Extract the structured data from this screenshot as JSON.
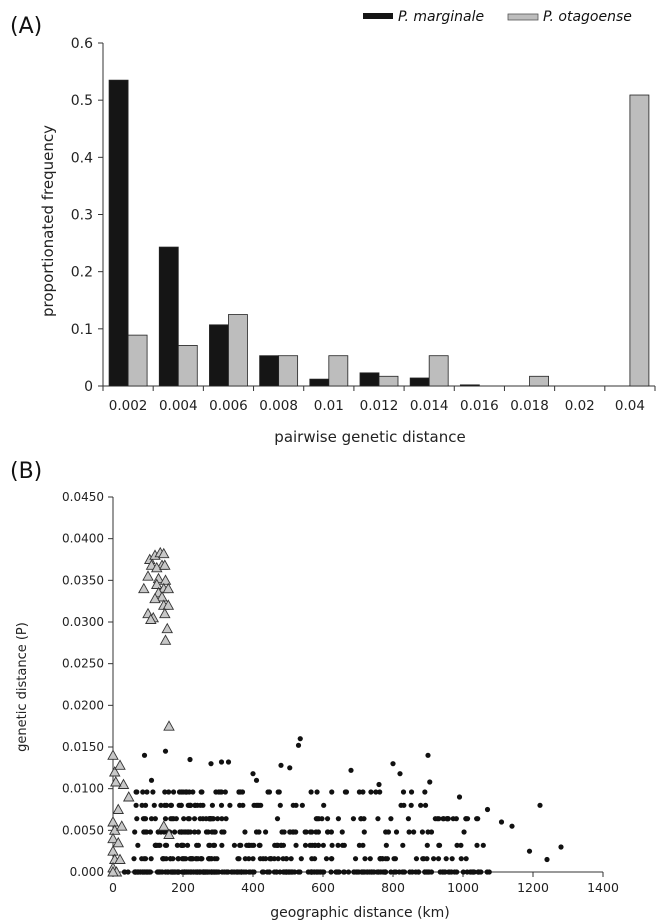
{
  "chart_data": [
    {
      "panel": "(A)",
      "type": "bar",
      "xlabel": "pairwise genetic distance",
      "ylabel": "proportionated frequency",
      "ylim": [
        0,
        0.6
      ],
      "yticks": [
        "0",
        "0.1",
        "0.2",
        "0.3",
        "0.4",
        "0.5",
        "0.6"
      ],
      "categories": [
        "0.002",
        "0.004",
        "0.006",
        "0.008",
        "0.01",
        "0.012",
        "0.014",
        "0.016",
        "0.018",
        "0.02",
        "0.04"
      ],
      "series": [
        {
          "name": "P. marginale",
          "color": "#151515",
          "values": [
            0.535,
            0.243,
            0.107,
            0.053,
            0.012,
            0.023,
            0.014,
            0.002,
            0,
            0,
            0
          ]
        },
        {
          "name": "P. otagoense",
          "color": "#bdbdbd",
          "values": [
            0.089,
            0.071,
            0.125,
            0.053,
            0.053,
            0.017,
            0.053,
            0,
            0.017,
            0,
            0.509
          ]
        }
      ],
      "grid": false,
      "legend_position": "top-right"
    },
    {
      "panel": "(B)",
      "type": "scatter",
      "xlabel": "geographic distance (km)",
      "ylabel": "genetic distance (P)",
      "xlim": [
        0,
        1400
      ],
      "ylim": [
        0,
        0.045
      ],
      "xticks": [
        "0",
        "200",
        "400",
        "600",
        "800",
        "1000",
        "1200",
        "1400"
      ],
      "yticks": [
        "0.000",
        "0.0050",
        "0.0100",
        "0.0150",
        "0.0200",
        "0.0250",
        "0.0300",
        "0.0350",
        "0.0400",
        "0.0450"
      ],
      "grid": false,
      "series": [
        {
          "marker": "triangle",
          "color": "#c8c8c8",
          "points": [
            [
              105,
              0.0375
            ],
            [
              120,
              0.038
            ],
            [
              135,
              0.0383
            ],
            [
              145,
              0.0382
            ],
            [
              110,
              0.0368
            ],
            [
              140,
              0.0368
            ],
            [
              125,
              0.0365
            ],
            [
              148,
              0.0368
            ],
            [
              100,
              0.0355
            ],
            [
              130,
              0.0352
            ],
            [
              150,
              0.035
            ],
            [
              125,
              0.0345
            ],
            [
              145,
              0.034
            ],
            [
              88,
              0.034
            ],
            [
              158,
              0.034
            ],
            [
              130,
              0.0335
            ],
            [
              140,
              0.033
            ],
            [
              120,
              0.0328
            ],
            [
              145,
              0.032
            ],
            [
              158,
              0.032
            ],
            [
              148,
              0.031
            ],
            [
              100,
              0.031
            ],
            [
              115,
              0.0305
            ],
            [
              108,
              0.0303
            ],
            [
              155,
              0.0292
            ],
            [
              150,
              0.0278
            ],
            [
              160,
              0.0175
            ],
            [
              0,
              0.014
            ],
            [
              5,
              0.012
            ],
            [
              20,
              0.0128
            ],
            [
              30,
              0.0105
            ],
            [
              8,
              0.0108
            ],
            [
              45,
              0.009
            ],
            [
              15,
              0.0075
            ],
            [
              0,
              0.006
            ],
            [
              5,
              0.005
            ],
            [
              25,
              0.0055
            ],
            [
              0,
              0.004
            ],
            [
              15,
              0.0035
            ],
            [
              0,
              0.0025
            ],
            [
              5,
              0.0015
            ],
            [
              20,
              0.0015
            ],
            [
              0,
              0.0005
            ],
            [
              10,
              0.0
            ],
            [
              0,
              0.0
            ],
            [
              160,
              0.0045
            ],
            [
              145,
              0.0055
            ]
          ]
        },
        {
          "marker": "circle",
          "color": "#111111",
          "generated_cloud": true,
          "points": [
            [
              535,
              0.016
            ],
            [
              530,
              0.0152
            ],
            [
              150,
              0.0145
            ],
            [
              90,
              0.014
            ],
            [
              900,
              0.014
            ],
            [
              310,
              0.0132
            ],
            [
              330,
              0.0132
            ],
            [
              220,
              0.0135
            ],
            [
              280,
              0.013
            ],
            [
              800,
              0.013
            ],
            [
              480,
              0.0128
            ],
            [
              505,
              0.0125
            ],
            [
              680,
              0.0122
            ],
            [
              820,
              0.0118
            ],
            [
              400,
              0.0118
            ],
            [
              410,
              0.011
            ],
            [
              110,
              0.011
            ],
            [
              905,
              0.0108
            ],
            [
              760,
              0.0105
            ],
            [
              990,
              0.009
            ],
            [
              1220,
              0.008
            ],
            [
              1070,
              0.0075
            ],
            [
              1140,
              0.0055
            ],
            [
              1280,
              0.003
            ],
            [
              1240,
              0.0015
            ],
            [
              1190,
              0.0025
            ],
            [
              1110,
              0.006
            ]
          ]
        }
      ]
    }
  ],
  "legend": {
    "items": [
      "P. marginale",
      "P. otagoense"
    ]
  }
}
